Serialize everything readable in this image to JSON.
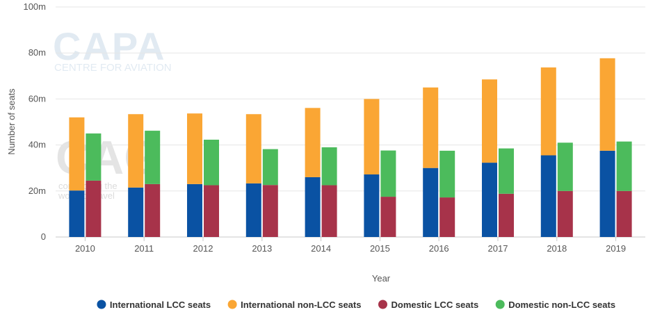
{
  "watermarks": {
    "capa_logo": "CAPA",
    "capa_sub": "CENTRE FOR AVIATION",
    "cagr_logo": "CAG",
    "cagr_line1": "connecting the",
    "cagr_line2": "world of travel"
  },
  "chart_data": {
    "type": "bar",
    "title": "",
    "xlabel": "Year",
    "ylabel": "Number of seats",
    "ylim": [
      0,
      100
    ],
    "y_unit_suffix": "m",
    "y_ticks": [
      "0",
      "20m",
      "40m",
      "60m",
      "80m",
      "100m"
    ],
    "grid": true,
    "legend_position": "bottom",
    "categories": [
      "2010",
      "2011",
      "2012",
      "2013",
      "2014",
      "2015",
      "2016",
      "2017",
      "2018",
      "2019"
    ],
    "stacks": [
      {
        "stack": "International",
        "series": [
          {
            "name": "International LCC seats",
            "color": "#0a52a3",
            "values": [
              20.2,
              21.5,
              23.0,
              23.3,
              26.0,
              27.2,
              30.0,
              32.3,
              35.5,
              37.5
            ]
          },
          {
            "name": "International non-LCC seats",
            "color": "#faa634",
            "values": [
              31.8,
              31.9,
              30.7,
              30.1,
              30.1,
              32.8,
              35.0,
              36.2,
              38.2,
              40.2
            ]
          }
        ]
      },
      {
        "stack": "Domestic",
        "series": [
          {
            "name": "Domestic LCC seats",
            "color": "#a7334a",
            "values": [
              24.5,
              23.0,
              22.5,
              22.6,
              22.5,
              17.5,
              17.2,
              18.8,
              20.0,
              20.0
            ]
          },
          {
            "name": "Domestic non-LCC seats",
            "color": "#4cbb5c",
            "values": [
              20.5,
              23.2,
              19.8,
              15.6,
              16.5,
              20.1,
              20.3,
              19.7,
              21.0,
              21.5
            ]
          }
        ]
      }
    ],
    "legend": [
      {
        "label": "International LCC seats",
        "color": "#0a52a3"
      },
      {
        "label": "International non-LCC seats",
        "color": "#faa634"
      },
      {
        "label": "Domestic LCC seats",
        "color": "#a7334a"
      },
      {
        "label": "Domestic non-LCC seats",
        "color": "#4cbb5c"
      }
    ]
  }
}
